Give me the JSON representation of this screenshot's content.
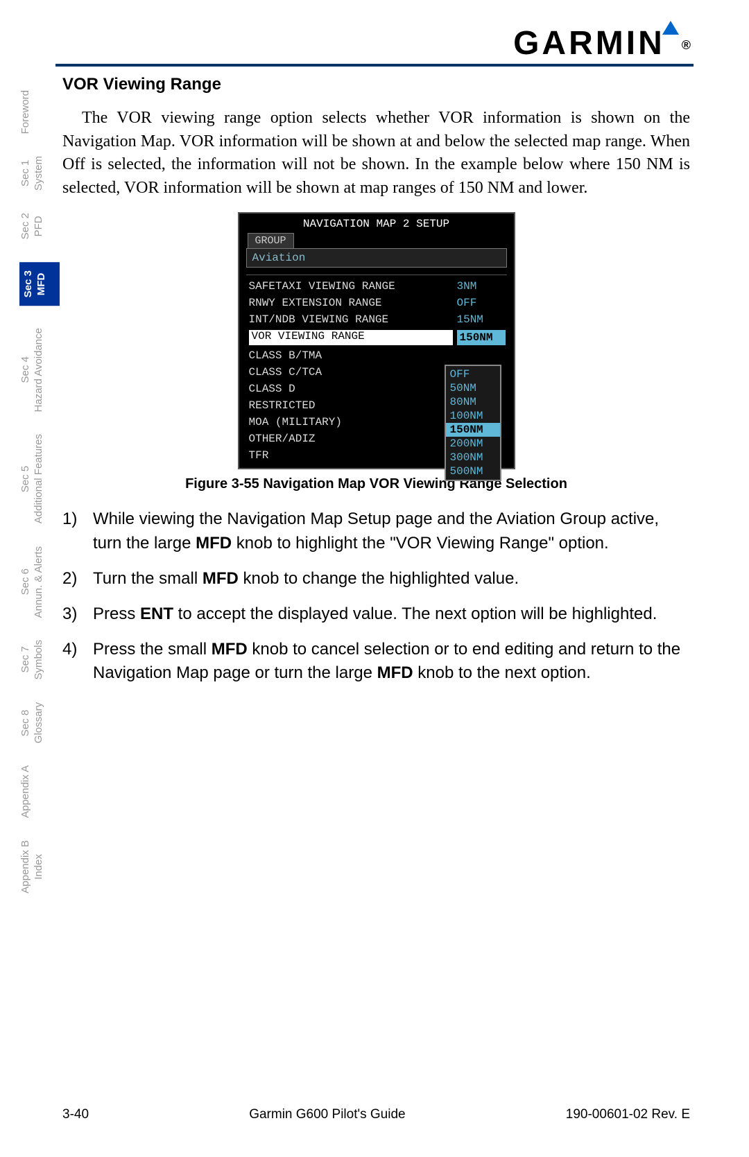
{
  "brand": "GARMIN",
  "header_rule_color": "#003366",
  "sidebar": {
    "tabs": [
      {
        "line1": "",
        "line2": "Foreword",
        "active": false
      },
      {
        "line1": "Sec 1",
        "line2": "System",
        "active": false
      },
      {
        "line1": "Sec 2",
        "line2": "PFD",
        "active": false
      },
      {
        "line1": "Sec 3",
        "line2": "MFD",
        "active": true
      },
      {
        "line1": "Sec 4",
        "line2": "Hazard Avoidance",
        "active": false
      },
      {
        "line1": "Sec 5",
        "line2": "Additional Features",
        "active": false
      },
      {
        "line1": "Sec 6",
        "line2": "Annun. & Alerts",
        "active": false
      },
      {
        "line1": "Sec 7",
        "line2": "Symbols",
        "active": false
      },
      {
        "line1": "Sec 8",
        "line2": "Glossary",
        "active": false
      },
      {
        "line1": "",
        "line2": "Appendix A",
        "active": false
      },
      {
        "line1": "Appendix B",
        "line2": "Index",
        "active": false
      }
    ]
  },
  "section_title": "VOR Viewing Range",
  "body_para": "The VOR viewing range option selects whether VOR information is shown on the Navigation Map. VOR information will be shown at and below the selected map range. When Off is selected, the information will not be shown. In the example below where 150 NM is selected, VOR information will be shown at map ranges of 150 NM and lower.",
  "screenshot": {
    "title": "NAVIGATION MAP 2 SETUP",
    "group_tab": "GROUP",
    "group_value": "Aviation",
    "rows": [
      {
        "label": "SAFETAXI VIEWING RANGE",
        "value": "3NM",
        "selected": false
      },
      {
        "label": "RNWY EXTENSION RANGE",
        "value": "OFF",
        "selected": false
      },
      {
        "label": "INT/NDB VIEWING RANGE",
        "value": "15NM",
        "selected": false
      },
      {
        "label": "VOR VIEWING RANGE",
        "value": "150NM",
        "selected": true
      },
      {
        "label": "CLASS B/TMA",
        "value": "",
        "selected": false
      },
      {
        "label": "CLASS C/TCA",
        "value": "",
        "selected": false
      },
      {
        "label": "CLASS D",
        "value": "",
        "selected": false
      },
      {
        "label": "RESTRICTED",
        "value": "",
        "selected": false
      },
      {
        "label": "MOA (MILITARY)",
        "value": "",
        "selected": false
      },
      {
        "label": "OTHER/ADIZ",
        "value": "",
        "selected": false
      },
      {
        "label": "TFR",
        "value": "",
        "selected": false
      }
    ],
    "dropdown": {
      "options": [
        "OFF",
        "50NM",
        "80NM",
        "100NM",
        "150NM",
        "200NM",
        "300NM",
        "500NM"
      ],
      "selected": "150NM"
    },
    "colors": {
      "bg": "#000000",
      "text": "#dddddd",
      "value": "#5fb8d8",
      "highlight_bg": "#ffffff",
      "highlight_text": "#000000"
    }
  },
  "figure_caption": "Figure 3-55  Navigation Map VOR Viewing Range Selection",
  "steps": [
    {
      "num": "1)",
      "html": "While viewing the Navigation Map Setup page and the Aviation Group active, turn the large <b>MFD</b> knob to highlight the \"VOR Viewing Range\" option."
    },
    {
      "num": "2)",
      "html": "Turn the small <b>MFD</b> knob to change the highlighted value."
    },
    {
      "num": "3)",
      "html": "Press <b>ENT</b> to accept the displayed value. The next option will be highlighted."
    },
    {
      "num": "4)",
      "html": "Press the small <b>MFD</b> knob to cancel selection or to end editing and return to the Navigation Map page or turn the large <b>MFD</b> knob to the next option."
    }
  ],
  "footer": {
    "left": "3-40",
    "center": "Garmin G600 Pilot's Guide",
    "right": "190-00601-02  Rev. E"
  }
}
